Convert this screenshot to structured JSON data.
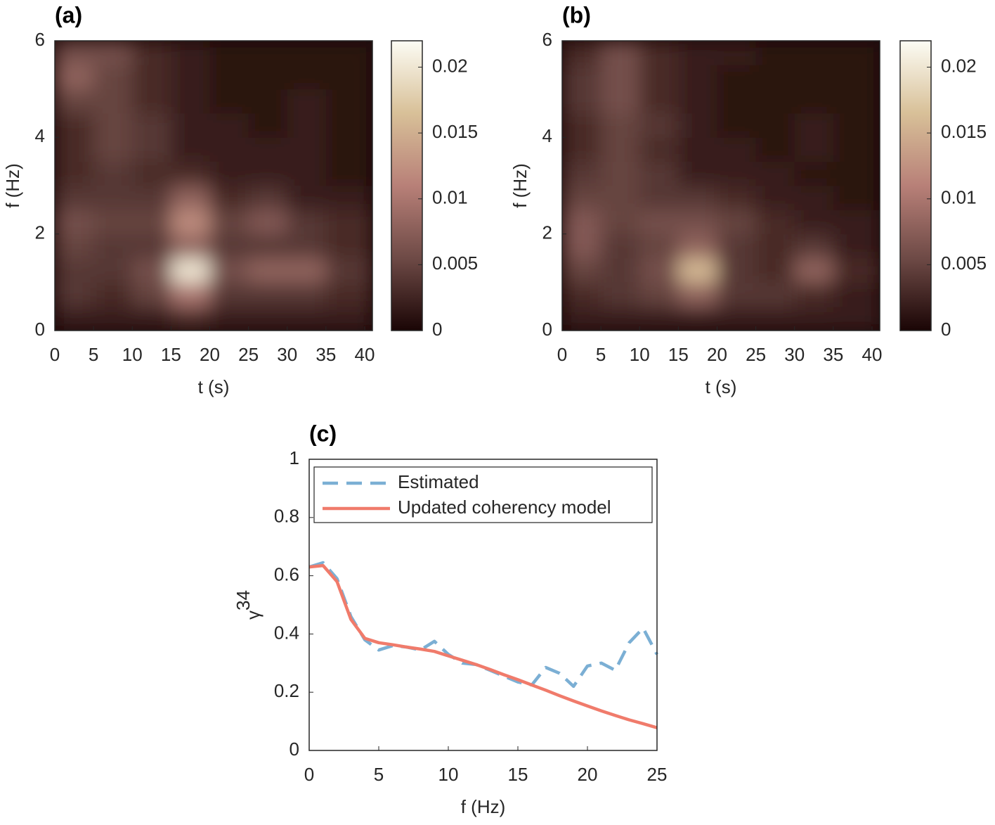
{
  "chart_data": [
    {
      "type": "heatmap",
      "title": "(a)",
      "xlabel": "t (s)",
      "ylabel": "f (Hz)",
      "x": [
        2.5,
        7.5,
        12.5,
        17.5,
        22.5,
        27.5,
        32.5,
        37.5
      ],
      "y": [
        0.25,
        0.75,
        1.25,
        1.75,
        2.25,
        2.75,
        3.25,
        3.75,
        4.25,
        4.75,
        5.25,
        5.75
      ],
      "values": [
        [
          0.002,
          0.002,
          0.002,
          0.003,
          0.002,
          0.002,
          0.002,
          0.002
        ],
        [
          0.004,
          0.003,
          0.005,
          0.01,
          0.004,
          0.004,
          0.004,
          0.003
        ],
        [
          0.004,
          0.004,
          0.006,
          0.02,
          0.006,
          0.008,
          0.008,
          0.004
        ],
        [
          0.005,
          0.004,
          0.004,
          0.008,
          0.004,
          0.004,
          0.004,
          0.003
        ],
        [
          0.006,
          0.005,
          0.005,
          0.012,
          0.005,
          0.007,
          0.004,
          0.003
        ],
        [
          0.004,
          0.004,
          0.004,
          0.008,
          0.003,
          0.004,
          0.002,
          0.002
        ],
        [
          0.003,
          0.004,
          0.003,
          0.003,
          0.002,
          0.002,
          0.002,
          0.001
        ],
        [
          0.003,
          0.005,
          0.004,
          0.002,
          0.002,
          0.002,
          0.002,
          0.001
        ],
        [
          0.003,
          0.005,
          0.004,
          0.002,
          0.002,
          0.001,
          0.002,
          0.001
        ],
        [
          0.005,
          0.005,
          0.003,
          0.002,
          0.001,
          0.001,
          0.002,
          0.001
        ],
        [
          0.008,
          0.005,
          0.003,
          0.002,
          0.001,
          0.001,
          0.001,
          0.001
        ],
        [
          0.006,
          0.006,
          0.003,
          0.002,
          0.001,
          0.001,
          0.001,
          0.001
        ]
      ],
      "xlim": [
        0,
        41
      ],
      "ylim": [
        0,
        6
      ],
      "xticks": [
        0,
        5,
        10,
        15,
        20,
        25,
        30,
        35,
        40
      ],
      "yticks": [
        0,
        2,
        4,
        6
      ],
      "clim": [
        0,
        0.022
      ],
      "cticks": [
        0,
        0.005,
        0.01,
        0.015,
        0.02
      ],
      "colormap": [
        "#1a0505",
        "#6e4a46",
        "#b88078",
        "#d8c098",
        "#fcfcf4"
      ]
    },
    {
      "type": "heatmap",
      "title": "(b)",
      "xlabel": "t (s)",
      "ylabel": "f (Hz)",
      "x": [
        2.5,
        7.5,
        12.5,
        17.5,
        22.5,
        27.5,
        32.5,
        37.5
      ],
      "y": [
        0.25,
        0.75,
        1.25,
        1.75,
        2.25,
        2.75,
        3.25,
        3.75,
        4.25,
        4.75,
        5.25,
        5.75
      ],
      "values": [
        [
          0.002,
          0.002,
          0.002,
          0.002,
          0.002,
          0.002,
          0.002,
          0.002
        ],
        [
          0.003,
          0.004,
          0.005,
          0.008,
          0.004,
          0.004,
          0.003,
          0.002
        ],
        [
          0.005,
          0.004,
          0.006,
          0.016,
          0.004,
          0.003,
          0.008,
          0.003
        ],
        [
          0.007,
          0.004,
          0.005,
          0.008,
          0.004,
          0.003,
          0.004,
          0.002
        ],
        [
          0.007,
          0.005,
          0.006,
          0.006,
          0.005,
          0.003,
          0.002,
          0.002
        ],
        [
          0.005,
          0.005,
          0.004,
          0.004,
          0.003,
          0.002,
          0.002,
          0.001
        ],
        [
          0.004,
          0.005,
          0.004,
          0.002,
          0.002,
          0.002,
          0.001,
          0.001
        ],
        [
          0.003,
          0.005,
          0.003,
          0.002,
          0.002,
          0.001,
          0.002,
          0.001
        ],
        [
          0.003,
          0.005,
          0.004,
          0.002,
          0.001,
          0.001,
          0.002,
          0.001
        ],
        [
          0.004,
          0.006,
          0.003,
          0.002,
          0.001,
          0.001,
          0.001,
          0.001
        ],
        [
          0.004,
          0.006,
          0.003,
          0.002,
          0.001,
          0.001,
          0.001,
          0.001
        ],
        [
          0.003,
          0.006,
          0.003,
          0.002,
          0.002,
          0.001,
          0.001,
          0.001
        ]
      ],
      "xlim": [
        0,
        41
      ],
      "ylim": [
        0,
        6
      ],
      "xticks": [
        0,
        5,
        10,
        15,
        20,
        25,
        30,
        35,
        40
      ],
      "yticks": [
        0,
        2,
        4,
        6
      ],
      "clim": [
        0,
        0.022
      ],
      "cticks": [
        0,
        0.005,
        0.01,
        0.015,
        0.02
      ],
      "colormap": [
        "#1a0505",
        "#6e4a46",
        "#b88078",
        "#d8c098",
        "#fcfcf4"
      ]
    },
    {
      "type": "line",
      "title": "(c)",
      "xlabel": "f (Hz)",
      "ylabel": "γ",
      "ylabel_superscript": "34",
      "x": [
        0,
        1,
        2,
        3,
        4,
        5,
        6,
        7,
        8,
        9,
        10,
        11,
        12,
        13,
        14,
        15,
        16,
        17,
        18,
        19,
        20,
        21,
        22,
        23,
        24,
        25
      ],
      "series": [
        {
          "name": "Estimated",
          "color": "#7bafd4",
          "dashed": true,
          "values": [
            0.63,
            0.645,
            0.59,
            0.46,
            0.38,
            0.345,
            0.36,
            0.355,
            0.345,
            0.375,
            0.33,
            0.3,
            0.295,
            0.275,
            0.255,
            0.235,
            0.225,
            0.285,
            0.265,
            0.22,
            0.29,
            0.3,
            0.275,
            0.37,
            0.42,
            0.33
          ]
        },
        {
          "name": "Updated coherency model",
          "color": "#f07b6b",
          "dashed": false,
          "values": [
            0.63,
            0.635,
            0.58,
            0.45,
            0.385,
            0.37,
            0.363,
            0.355,
            0.348,
            0.34,
            0.325,
            0.31,
            0.295,
            0.278,
            0.26,
            0.243,
            0.225,
            0.207,
            0.188,
            0.17,
            0.153,
            0.136,
            0.12,
            0.105,
            0.092,
            0.078
          ]
        }
      ],
      "xlim": [
        0,
        25
      ],
      "ylim": [
        0,
        1
      ],
      "xticks": [
        0,
        5,
        10,
        15,
        20,
        25
      ],
      "yticks": [
        0,
        0.2,
        0.4,
        0.6,
        0.8,
        1
      ],
      "legend": "upper left"
    }
  ]
}
